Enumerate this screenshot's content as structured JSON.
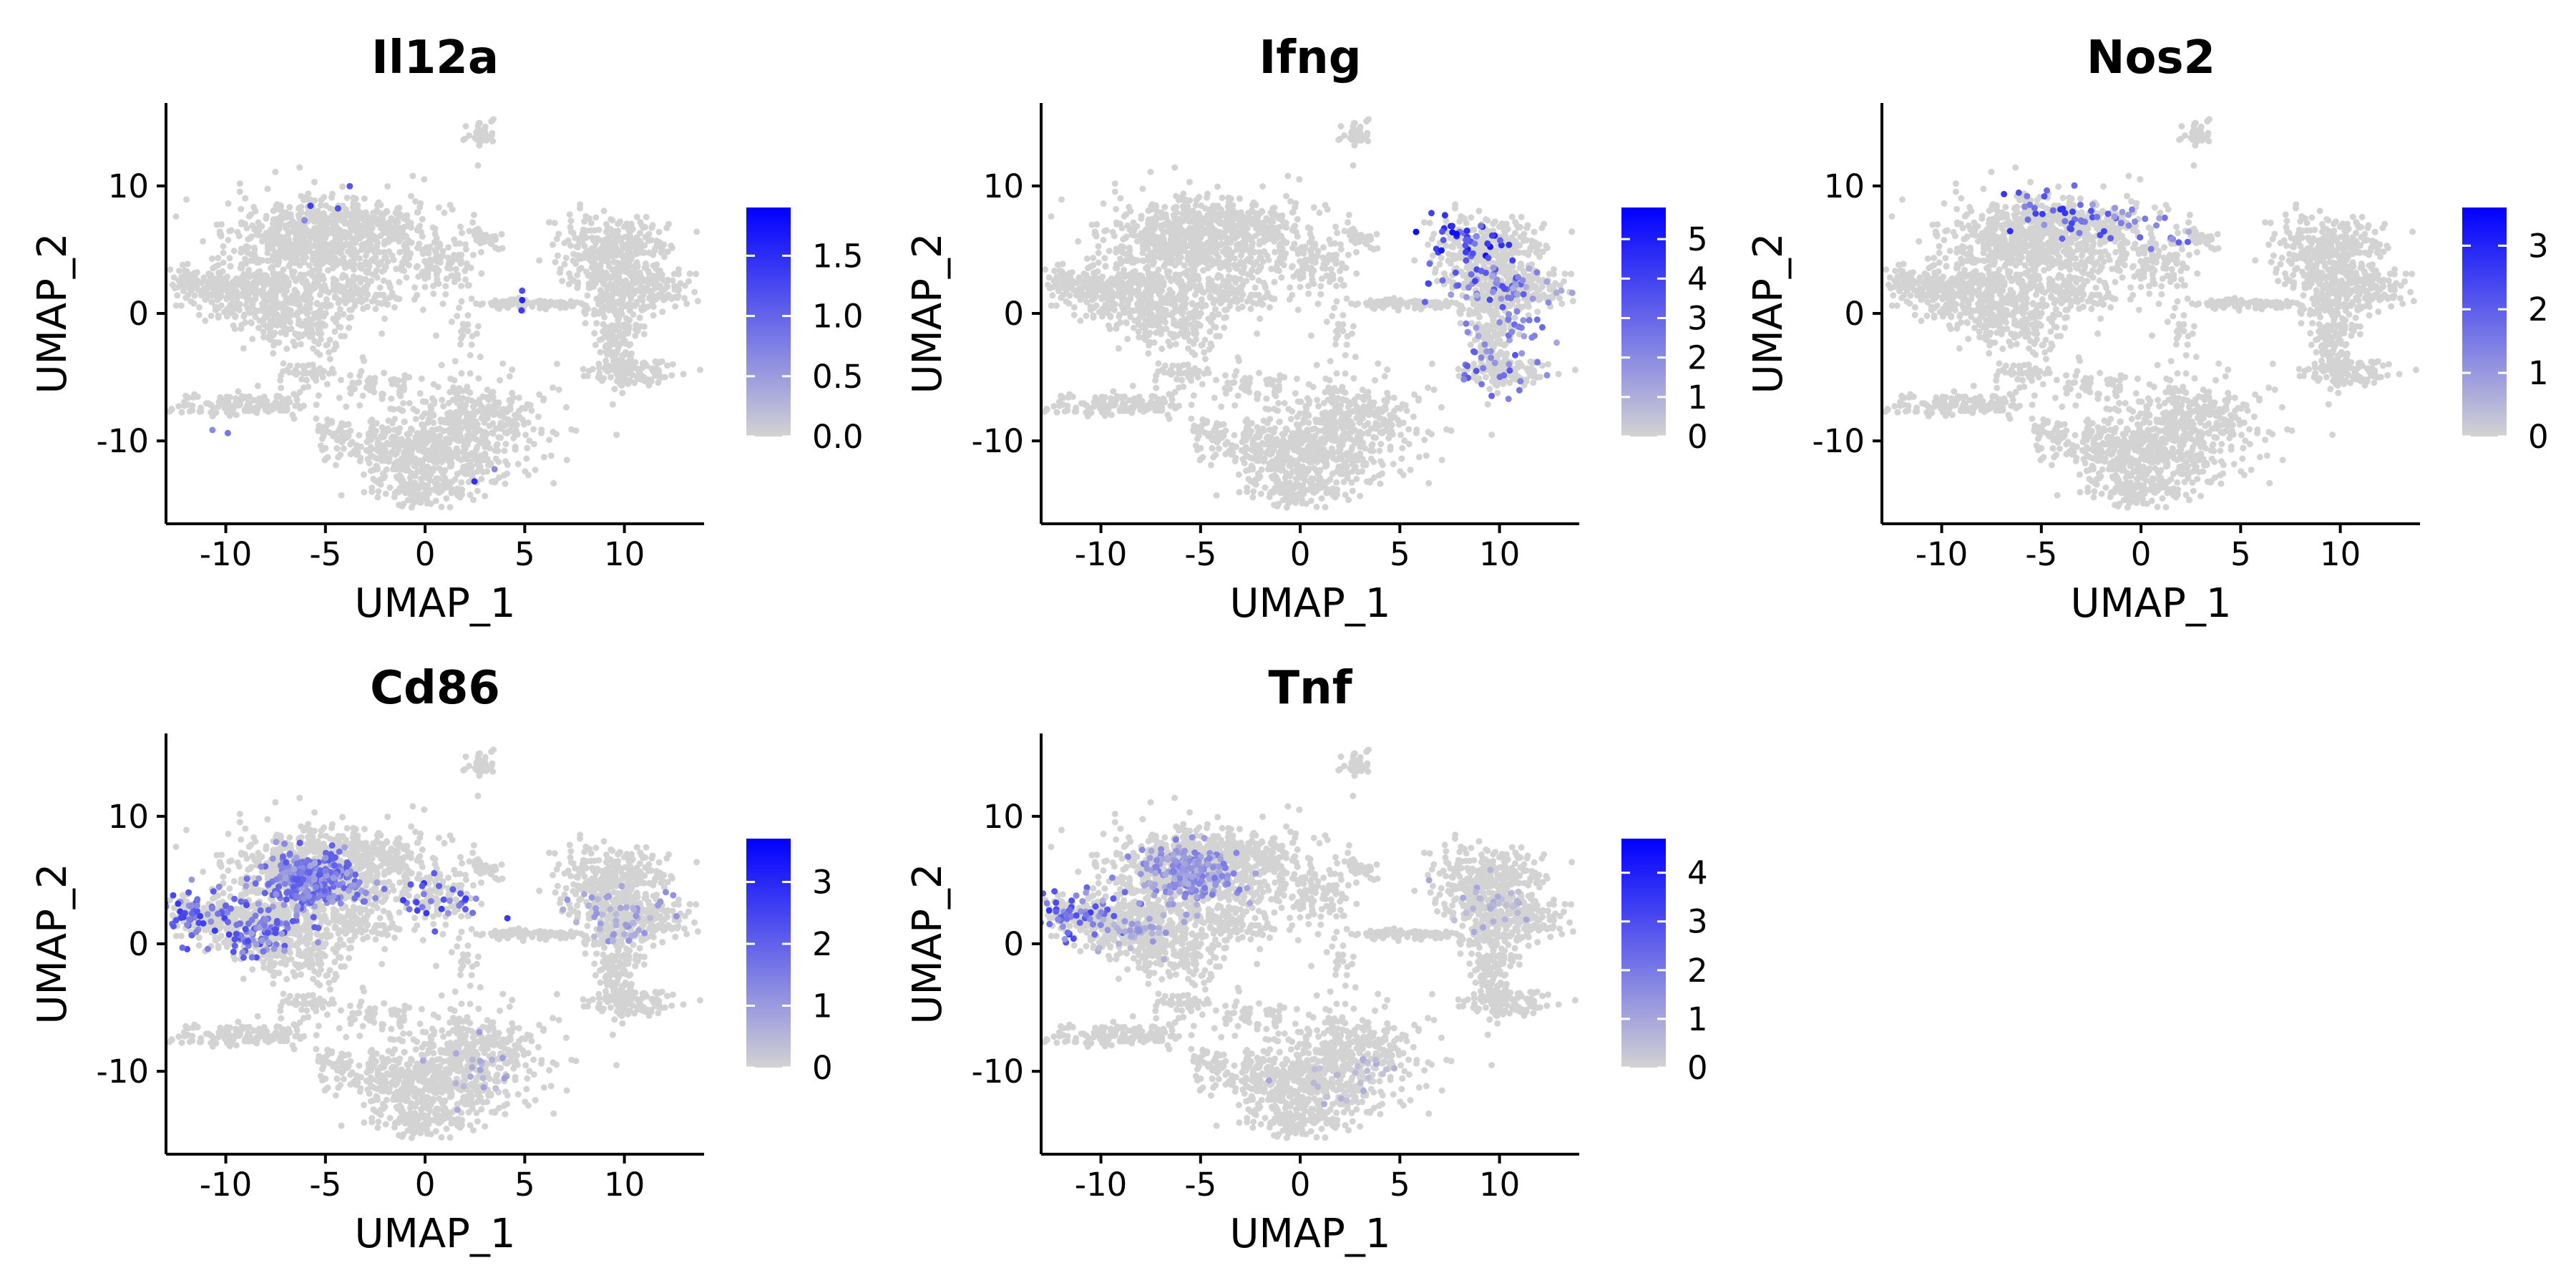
{
  "chart_data": [
    {
      "type": "scatter",
      "title": "Il12a",
      "xlabel": "UMAP_1",
      "ylabel": "UMAP_2",
      "xlim": [
        -13,
        14
      ],
      "ylim": [
        -16.5,
        16.5
      ],
      "xticks": [
        "-10",
        "-5",
        "0",
        "5",
        "10"
      ],
      "yticks": [
        "10",
        "0",
        "-10"
      ],
      "color_scale": {
        "min": 0,
        "max": 1.9,
        "low_color": "#d3d3d3",
        "high_color": "#0000ff",
        "ticks": [
          "0.0",
          "0.5",
          "1.0",
          "1.5"
        ]
      },
      "hotspots": [
        {
          "x": -4.5,
          "y": 7.9,
          "value": 1.6,
          "n": 4
        },
        {
          "x": 4.5,
          "y": 0.8,
          "value": 1.8,
          "n": 3
        },
        {
          "x": 2.5,
          "y": -12.2,
          "value": 1.7,
          "n": 2
        },
        {
          "x": -10.5,
          "y": -7.4,
          "value": 1.2,
          "n": 2
        }
      ]
    },
    {
      "type": "scatter",
      "title": "Ifng",
      "xlabel": "UMAP_1",
      "ylabel": "UMAP_2",
      "xlim": [
        -13,
        14
      ],
      "ylim": [
        -16.5,
        16.5
      ],
      "xticks": [
        "-10",
        "-5",
        "0",
        "5",
        "10"
      ],
      "yticks": [
        "10",
        "0",
        "-10"
      ],
      "color_scale": {
        "min": 0,
        "max": 5.8,
        "low_color": "#d3d3d3",
        "high_color": "#0000ff",
        "ticks": [
          "0",
          "1",
          "2",
          "3",
          "4",
          "5"
        ]
      },
      "hotspots": [
        {
          "x": 8.3,
          "y": 6.0,
          "value": 5.5,
          "n": 40
        },
        {
          "x": 9.3,
          "y": 2.5,
          "value": 4.0,
          "n": 45
        },
        {
          "x": 10.5,
          "y": -1.5,
          "value": 3.0,
          "n": 25
        },
        {
          "x": 10.0,
          "y": -4.5,
          "value": 3.5,
          "n": 25
        },
        {
          "x": 11.0,
          "y": 2.0,
          "value": 2.5,
          "n": 20
        }
      ]
    },
    {
      "type": "scatter",
      "title": "Nos2",
      "xlabel": "UMAP_1",
      "ylabel": "UMAP_2",
      "xlim": [
        -13,
        14
      ],
      "ylim": [
        -16.5,
        16.5
      ],
      "xticks": [
        "-10",
        "-5",
        "0",
        "5",
        "10"
      ],
      "yticks": [
        "10",
        "0",
        "-10"
      ],
      "color_scale": {
        "min": 0,
        "max": 3.6,
        "low_color": "#d3d3d3",
        "high_color": "#0000ff",
        "ticks": [
          "0",
          "1",
          "2",
          "3"
        ]
      },
      "hotspots": [
        {
          "x": -4.5,
          "y": 8.0,
          "value": 3.0,
          "n": 30
        },
        {
          "x": -1.0,
          "y": 7.5,
          "value": 2.5,
          "n": 20
        },
        {
          "x": 0.5,
          "y": 6.2,
          "value": 2.0,
          "n": 10
        }
      ]
    },
    {
      "type": "scatter",
      "title": "Cd86",
      "xlabel": "UMAP_1",
      "ylabel": "UMAP_2",
      "xlim": [
        -13,
        14
      ],
      "ylim": [
        -16.5,
        16.5
      ],
      "xticks": [
        "-10",
        "-5",
        "0",
        "5",
        "10"
      ],
      "yticks": [
        "10",
        "0",
        "-10"
      ],
      "color_scale": {
        "min": 0,
        "max": 3.7,
        "low_color": "#d3d3d3",
        "high_color": "#0000ff",
        "ticks": [
          "0",
          "1",
          "2",
          "3"
        ]
      },
      "hotspots": [
        {
          "x": -5.5,
          "y": 5.0,
          "value": 2.2,
          "n": 320
        },
        {
          "x": -11.5,
          "y": 2.5,
          "value": 2.8,
          "n": 60
        },
        {
          "x": -8.0,
          "y": 1.0,
          "value": 2.4,
          "n": 90
        },
        {
          "x": 0.8,
          "y": 3.5,
          "value": 2.8,
          "n": 30
        },
        {
          "x": 9.5,
          "y": 2.5,
          "value": 1.2,
          "n": 50
        },
        {
          "x": 2.5,
          "y": -10.0,
          "value": 1.0,
          "n": 20
        }
      ]
    },
    {
      "type": "scatter",
      "title": "Tnf",
      "xlabel": "UMAP_1",
      "ylabel": "UMAP_2",
      "xlim": [
        -13,
        14
      ],
      "ylim": [
        -16.5,
        16.5
      ],
      "xticks": [
        "-10",
        "-5",
        "0",
        "5",
        "10"
      ],
      "yticks": [
        "10",
        "0",
        "-10"
      ],
      "color_scale": {
        "min": 0,
        "max": 4.7,
        "low_color": "#d3d3d3",
        "high_color": "#0000ff",
        "ticks": [
          "0",
          "1",
          "2",
          "3",
          "4"
        ]
      },
      "hotspots": [
        {
          "x": -5.5,
          "y": 5.5,
          "value": 2.0,
          "n": 220
        },
        {
          "x": -11.0,
          "y": 2.5,
          "value": 3.5,
          "n": 60
        },
        {
          "x": -8.0,
          "y": 1.0,
          "value": 1.5,
          "n": 40
        },
        {
          "x": 9.5,
          "y": 3.0,
          "value": 1.0,
          "n": 30
        },
        {
          "x": 2.5,
          "y": -10.0,
          "value": 1.0,
          "n": 25
        }
      ]
    }
  ]
}
